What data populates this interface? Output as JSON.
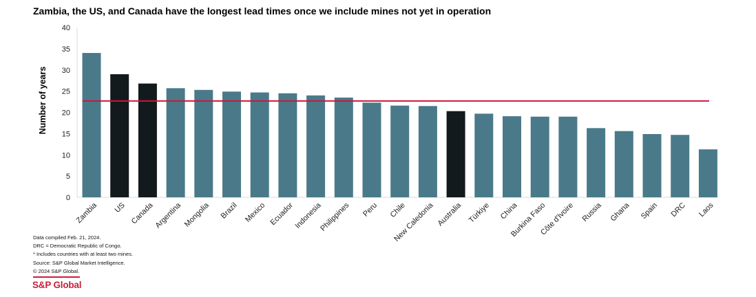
{
  "chart_data": {
    "type": "bar",
    "title": "Zambia, the US, and Canada have the longest lead times once we include mines not yet in operation",
    "xlabel": "",
    "ylabel": "Number of years",
    "ylim": [
      0,
      40
    ],
    "yticks": [
      0,
      5,
      10,
      15,
      20,
      25,
      30,
      35,
      40
    ],
    "categories": [
      "Zambia",
      "US",
      "Canada",
      "Argentina",
      "Mongolia",
      "Brazil",
      "Mexico",
      "Ecuador",
      "Indonesia",
      "Philippines",
      "Peru",
      "Chile",
      "New Caledonia",
      "Australia",
      "Türkiye",
      "China",
      "Burkina Faso",
      "Côte d'Ivoire",
      "Russia",
      "Ghana",
      "Spain",
      "DRC",
      "Laos"
    ],
    "values": [
      34.0,
      29.0,
      26.8,
      25.7,
      25.3,
      24.9,
      24.7,
      24.5,
      24.0,
      23.5,
      22.3,
      21.6,
      21.5,
      20.3,
      19.7,
      19.1,
      19.0,
      19.0,
      16.3,
      15.6,
      14.9,
      14.7,
      11.3
    ],
    "highlighted": [
      "US",
      "Canada",
      "Australia"
    ],
    "reference_line": 22.7,
    "grid": false,
    "legend": "none"
  },
  "colors": {
    "bar": "#4a7a89",
    "highlight_bar": "#131a1d",
    "reference_line": "#d0143c",
    "brand": "#c81e3c"
  },
  "notes": [
    "Data compiled Feb. 21, 2024.",
    "DRC = Democratic Republic of Congo.",
    "* Includes countries with at least two mines.",
    "Source: S&P Global Market Intelligence.",
    "© 2024 S&P Global."
  ],
  "brand": "S&P Global"
}
